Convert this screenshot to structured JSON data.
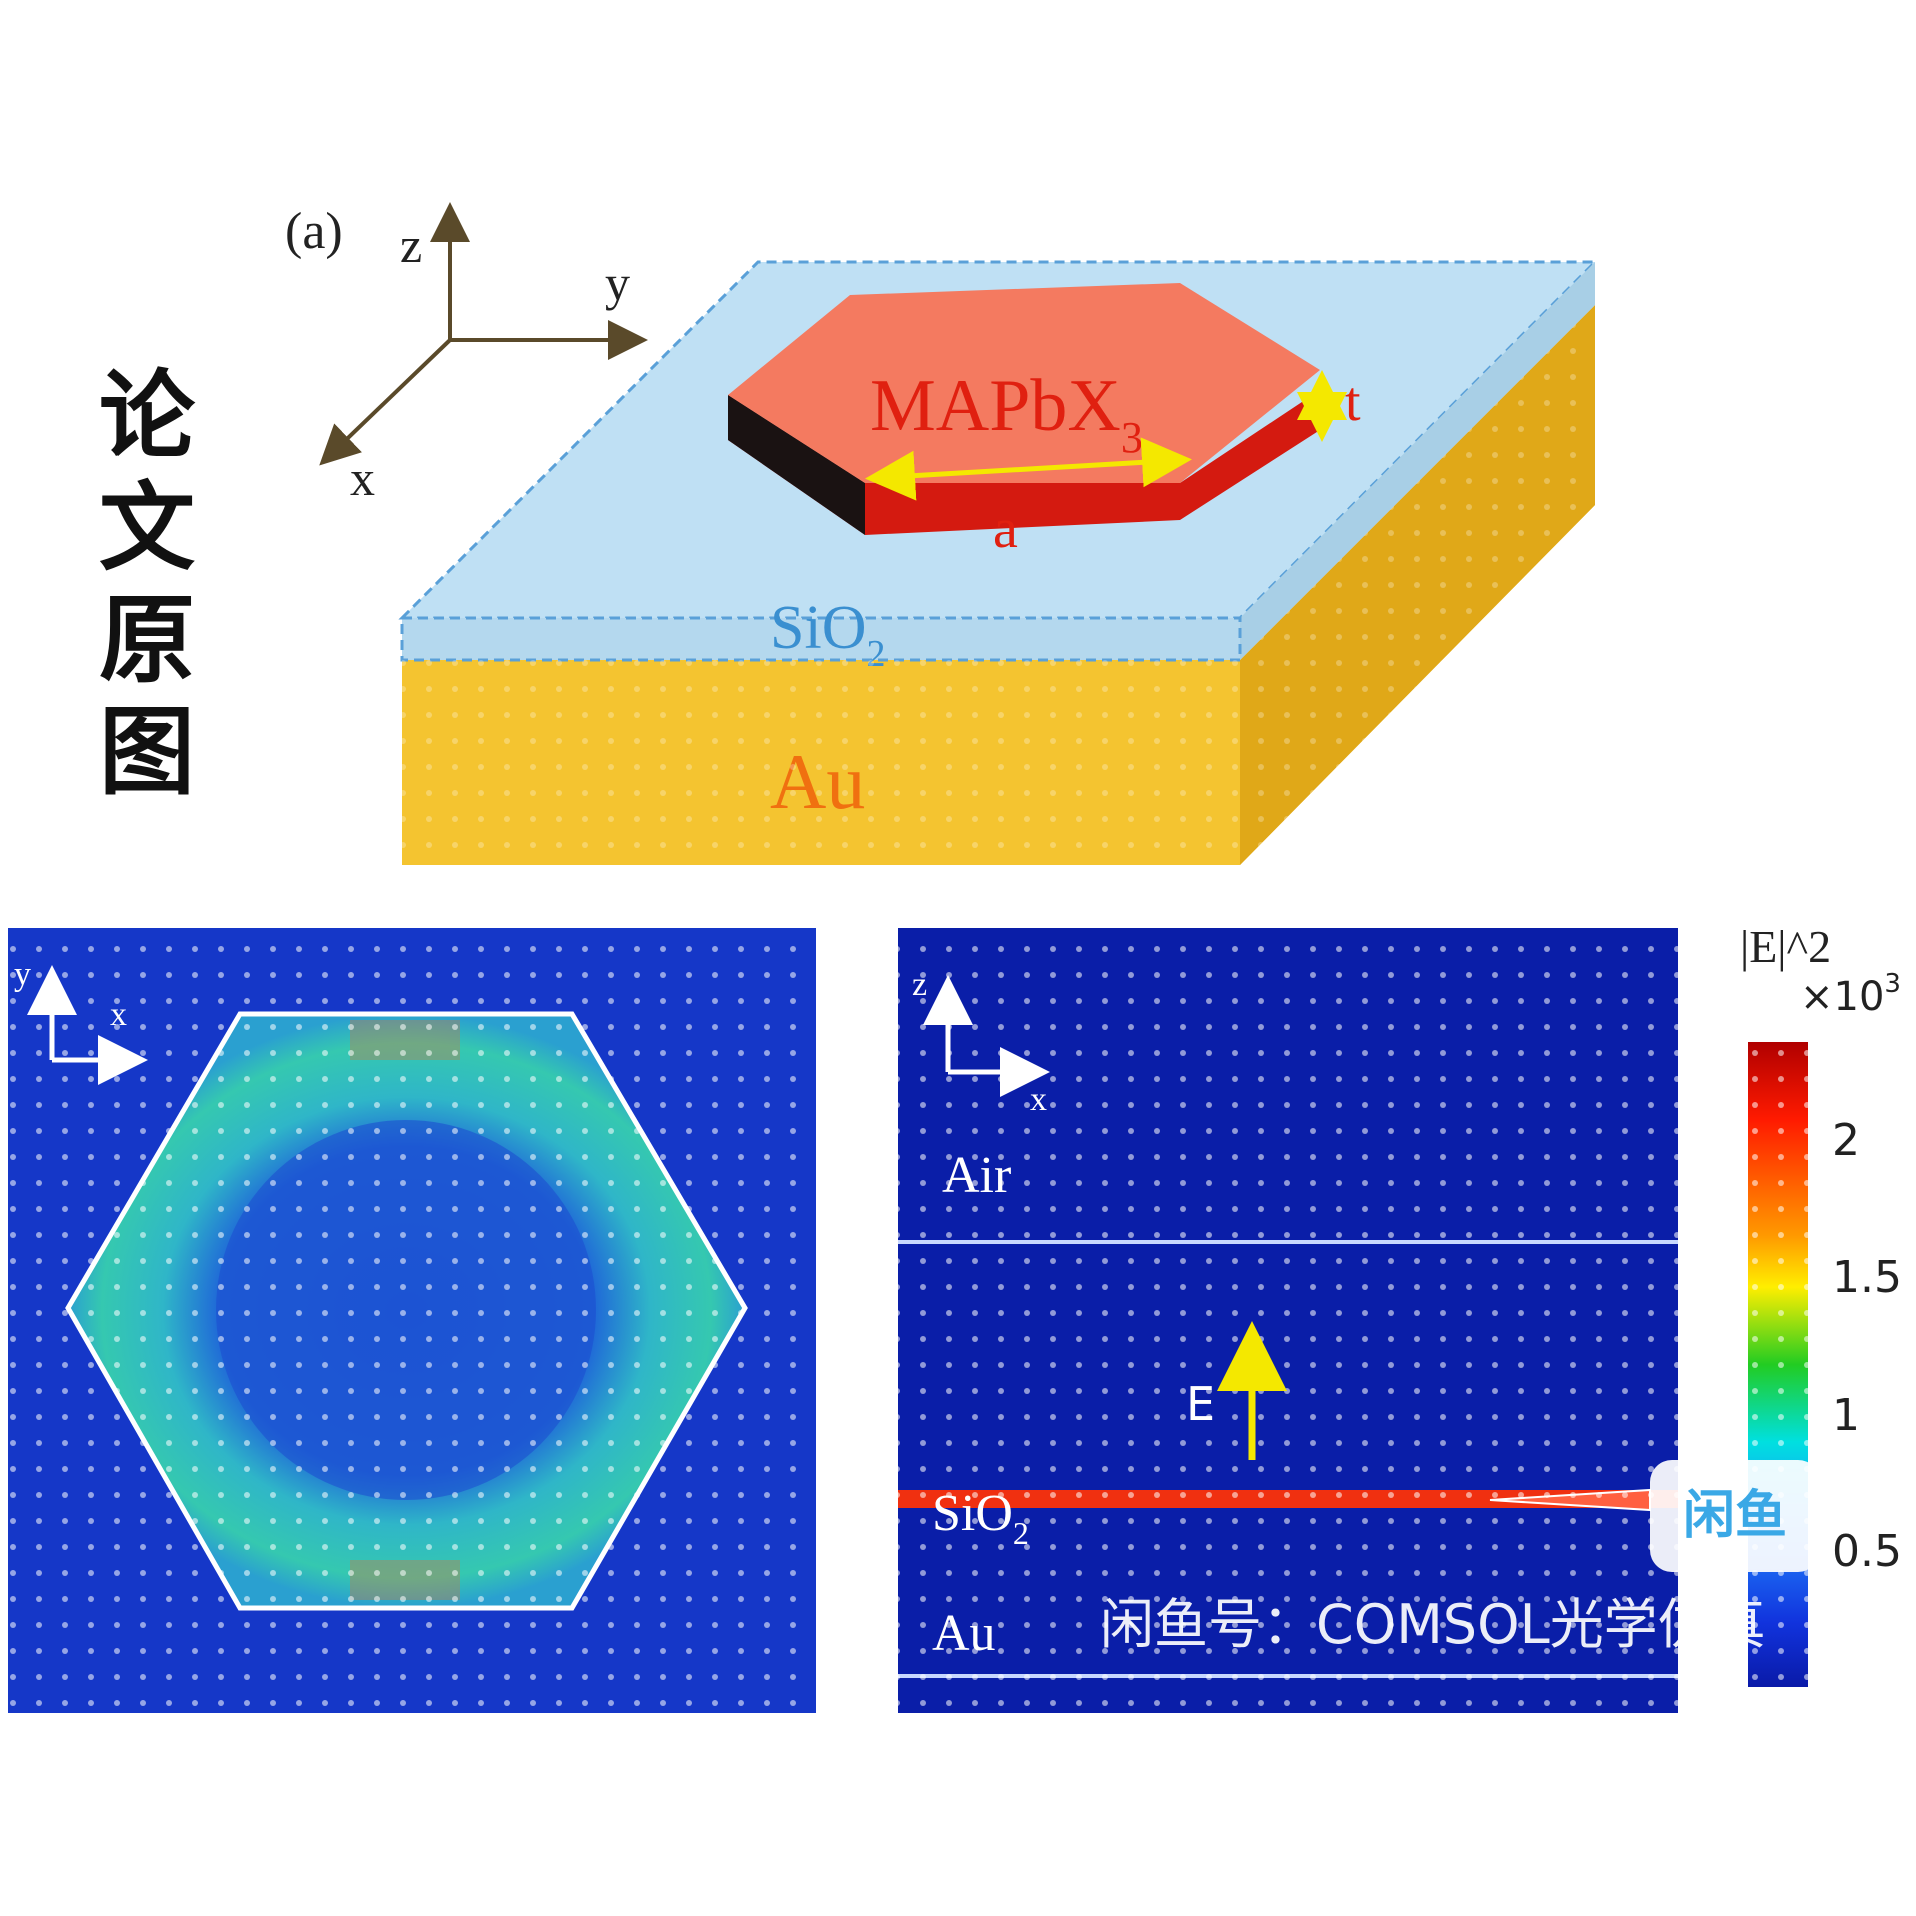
{
  "side_title": [
    "论",
    "文",
    "原",
    "图"
  ],
  "panel_a": {
    "label": "(a)",
    "axes": {
      "z": "z",
      "y": "y",
      "x": "x"
    },
    "crystal_label": "MAPbX",
    "crystal_sub": "3",
    "dim_t": "t",
    "dim_a": "a",
    "sio2_label": "SiO",
    "sio2_sub": "2",
    "au_label": "Au"
  },
  "panel_top_view": {
    "axis_y": "y",
    "axis_x": "x"
  },
  "panel_side_view": {
    "axis_z": "z",
    "axis_x": "x",
    "air_label": "Air",
    "e_label": "E",
    "sio2_label": "SiO",
    "sio2_sub": "2",
    "au_label": "Au"
  },
  "colorbar": {
    "title": "|E|^2",
    "scale": "×10",
    "scale_exp": "3",
    "ticks": [
      "2",
      "1.5",
      "1",
      "0.5"
    ]
  },
  "watermark": "闲鱼号：COMSOL光学仿真",
  "badge": "闲鱼",
  "colors": {
    "sio2": "#bfe0f4",
    "au": "#f4c430",
    "crystal": "#f05a4a",
    "field_bg": "#1537c8",
    "yellow_arrow": "#f4e800"
  }
}
